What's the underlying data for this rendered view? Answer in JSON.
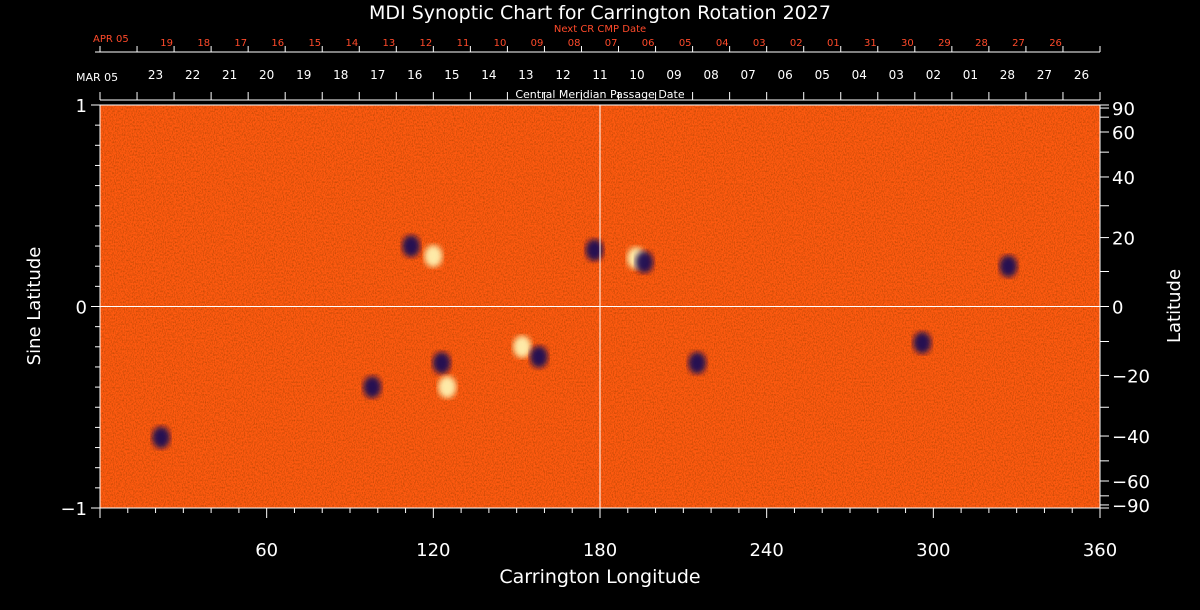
{
  "chart_data": {
    "type": "heatmap",
    "title": "MDI Synoptic Chart for Carrington Rotation 2027",
    "xlabel": "Carrington Longitude",
    "ylabel_left": "Sine Latitude",
    "ylabel_right": "Latitude",
    "xlim": [
      0,
      360
    ],
    "ylim": [
      -1,
      1
    ],
    "x_ticks": [
      60,
      120,
      180,
      240,
      300,
      360
    ],
    "y_left_ticks": [
      {
        "v": 1,
        "label": "1"
      },
      {
        "v": 0,
        "label": "0"
      },
      {
        "v": -1,
        "label": "−1"
      }
    ],
    "y_right_ticks": [
      {
        "deg": 90,
        "label": "90"
      },
      {
        "deg": 60,
        "label": "60"
      },
      {
        "deg": 40,
        "label": "40"
      },
      {
        "deg": 20,
        "label": "20"
      },
      {
        "deg": 0,
        "label": "0"
      },
      {
        "deg": -20,
        "label": "−20"
      },
      {
        "deg": -40,
        "label": "−40"
      },
      {
        "deg": -60,
        "label": "−60"
      },
      {
        "deg": -90,
        "label": "−90"
      }
    ],
    "center_line_longitude": 180,
    "top_axis": {
      "label": "Central Meridian Passage Date",
      "start_label": "MAR 05",
      "dates": [
        "23",
        "22",
        "21",
        "20",
        "19",
        "18",
        "17",
        "16",
        "15",
        "14",
        "13",
        "12",
        "11",
        "10",
        "09",
        "08",
        "07",
        "06",
        "05",
        "04",
        "03",
        "02",
        "01",
        "28",
        "27",
        "26"
      ]
    },
    "next_axis": {
      "label": "Next CR CMP Date",
      "start_label": "APR 05",
      "dates": [
        "19",
        "18",
        "17",
        "16",
        "15",
        "14",
        "13",
        "12",
        "11",
        "10",
        "09",
        "08",
        "07",
        "06",
        "05",
        "04",
        "03",
        "02",
        "01",
        "31",
        "30",
        "29",
        "28",
        "27",
        "26"
      ]
    },
    "colors": {
      "background": "#ff5a10",
      "positive": "#fff2b0",
      "negative": "#1a0a55",
      "next_axis": "#ff4a2a",
      "axis": "#ffffff"
    },
    "active_regions": [
      {
        "lon": 112,
        "sinlat": 0.3,
        "polarity": "negative"
      },
      {
        "lon": 120,
        "sinlat": 0.25,
        "polarity": "positive"
      },
      {
        "lon": 178,
        "sinlat": 0.28,
        "polarity": "negative"
      },
      {
        "lon": 193,
        "sinlat": 0.24,
        "polarity": "positive"
      },
      {
        "lon": 196,
        "sinlat": 0.22,
        "polarity": "negative"
      },
      {
        "lon": 123,
        "sinlat": -0.28,
        "polarity": "negative"
      },
      {
        "lon": 125,
        "sinlat": -0.4,
        "polarity": "positive"
      },
      {
        "lon": 152,
        "sinlat": -0.2,
        "polarity": "positive"
      },
      {
        "lon": 158,
        "sinlat": -0.25,
        "polarity": "negative"
      },
      {
        "lon": 98,
        "sinlat": -0.4,
        "polarity": "negative"
      },
      {
        "lon": 22,
        "sinlat": -0.65,
        "polarity": "negative"
      },
      {
        "lon": 215,
        "sinlat": -0.28,
        "polarity": "negative"
      },
      {
        "lon": 296,
        "sinlat": -0.18,
        "polarity": "negative"
      },
      {
        "lon": 327,
        "sinlat": 0.2,
        "polarity": "negative"
      }
    ]
  }
}
